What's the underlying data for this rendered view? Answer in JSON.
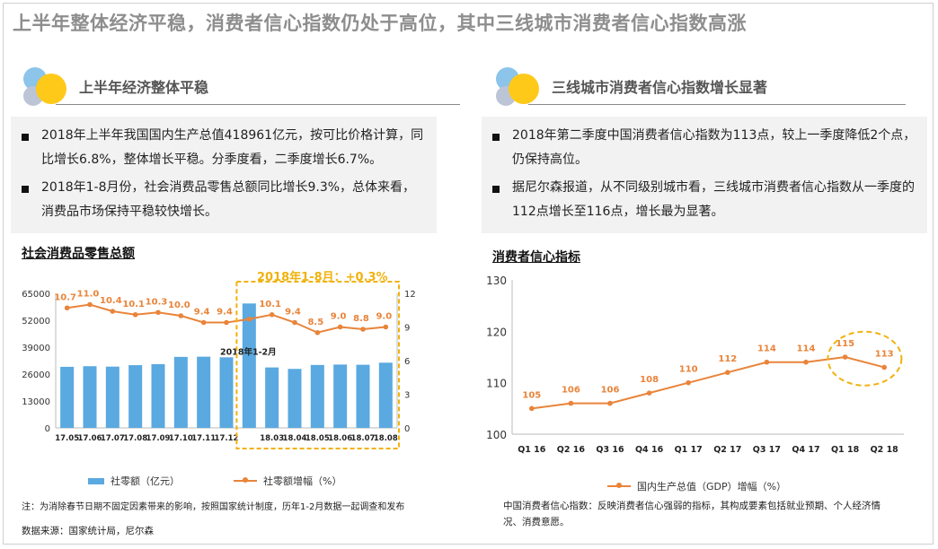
{
  "page": {
    "title": "上半年整体经济平稳，消费者信心指数仍处于高位，其中三线城市消费者信心指数高涨"
  },
  "left": {
    "section_title": "上半年经济整体平稳",
    "bullets": [
      "2018年上半年我国国内生产总值418961亿元，按可比价格计算，同比增长6.8%，整体增长平稳。分季度看，二季度增长6.7%。",
      "2018年1-8月份，社会消费品零售总额同比增长9.3%，总体来看，消费品市场保持平稳较快增长。"
    ],
    "chart_title": "社会消费品零售总额",
    "highlight_label": "2018年1-8月：+0.3%",
    "note": "注：为消除春节日期不固定因素带来的影响，按照国家统计制度，历年1-2月数据一起调查和发布",
    "source": "数据来源：国家统计局，尼尔森"
  },
  "right": {
    "section_title": "三线城市消费者信心指数增长显著",
    "bullets": [
      "2018年第二季度中国消费者信心指数为113点，较上一季度降低2个点，仍保持高位。",
      "据尼尔森报道，从不同级别城市看，三线城市消费者信心指数从一季度的112点增长至116点，增长最为显著。"
    ],
    "chart_title": "消费者信心指标",
    "note": "中国消费者信心指数：反映消费者信心强弱的指标，其构成要素包括就业预期、个人经济情况、消费意愿。"
  },
  "colors": {
    "bar": "#5aa9e0",
    "line": "#e9843a",
    "highlight": "#f1b20d",
    "label": "#e9843a"
  },
  "chart_data": [
    {
      "type": "bar",
      "title": "社会消费品零售总额",
      "categories": [
        "17.05",
        "17.06",
        "17.07",
        "17.08",
        "17.09",
        "17.10",
        "17.11",
        "17.12",
        "18.01-02",
        "18.03",
        "18.04",
        "18.05",
        "18.06",
        "18.07",
        "18.08"
      ],
      "tick_labels": [
        "17.05",
        "17.06",
        "17.07",
        "17.08",
        "17.09",
        "17.10",
        "17.11",
        "17.12",
        "",
        "18.03",
        "18.04",
        "18.05",
        "18.06",
        "18.07",
        "18.08"
      ],
      "series": [
        {
          "name": "社零额（亿元）",
          "axis": "left",
          "type": "bar",
          "values": [
            29500,
            29800,
            29600,
            30300,
            30800,
            34300,
            34400,
            34100,
            60100,
            29200,
            28500,
            30400,
            30600,
            30500,
            31500
          ]
        },
        {
          "name": "社零额增幅（%）",
          "axis": "right",
          "type": "line",
          "values": [
            10.7,
            11.0,
            10.4,
            10.1,
            10.3,
            10.0,
            9.4,
            9.4,
            9.7,
            10.1,
            9.4,
            8.5,
            9.0,
            8.8,
            9.0
          ],
          "labels": [
            "10.7",
            "11.0",
            "10.4",
            "10.1",
            "10.3",
            "10.0",
            "9.4",
            "9.4",
            "",
            "10.1",
            "9.4",
            "8.5",
            "9.0",
            "8.8",
            "9.0"
          ]
        }
      ],
      "ylim": [
        0,
        65000
      ],
      "yticks": [
        0,
        13000,
        26000,
        39000,
        52000,
        65000
      ],
      "y2lim": [
        0,
        12
      ],
      "y2ticks": [
        0,
        3,
        6,
        9,
        12
      ],
      "annotation": "2018年1-2月",
      "legend": [
        "社零额（亿元）",
        "社零额增幅（%）"
      ]
    },
    {
      "type": "line",
      "title": "消费者信心指标",
      "categories": [
        "Q1 16",
        "Q2 16",
        "Q3 16",
        "Q4 16",
        "Q1 17",
        "Q2 17",
        "Q3 17",
        "Q4 17",
        "Q1 18",
        "Q2 18"
      ],
      "series": [
        {
          "name": "国内生产总值（GDP）增幅（%）",
          "values": [
            105,
            106,
            106,
            108,
            110,
            112,
            114,
            114,
            115,
            113
          ]
        }
      ],
      "ylim": [
        100,
        130
      ],
      "yticks": [
        100,
        110,
        120,
        130
      ],
      "legend": [
        "国内生产总值（GDP）增幅（%）"
      ]
    }
  ]
}
